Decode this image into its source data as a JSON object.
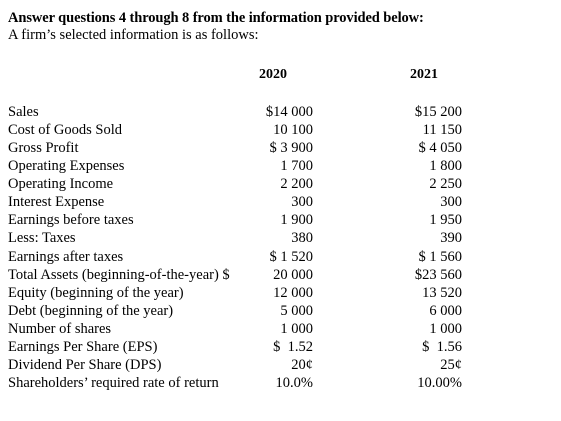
{
  "heading": "Answer questions 4 through 8 from the information provided below:",
  "subheading": "A firm’s selected information is as follows:",
  "columns": [
    "2020",
    "2021"
  ],
  "rows": [
    {
      "label": "Sales",
      "v2020": "$14 000",
      "v2021": "$15 200"
    },
    {
      "label": "Cost of Goods Sold",
      "v2020": "10 100",
      "v2021": "11 150"
    },
    {
      "label": "Gross Profit",
      "v2020": "$ 3 900",
      "v2021": "$ 4 050"
    },
    {
      "label": "Operating Expenses",
      "v2020": "1 700",
      "v2021": "1 800"
    },
    {
      "label": "Operating Income",
      "v2020": "2 200",
      "v2021": "2 250"
    },
    {
      "label": "Interest Expense",
      "v2020": "300",
      "v2021": "300"
    },
    {
      "label": "Earnings before taxes",
      "v2020": "1 900",
      "v2021": "1 950"
    },
    {
      "label": "Less: Taxes",
      "v2020": "380",
      "v2021": "390"
    },
    {
      "label": "Earnings after taxes",
      "v2020": "$ 1 520",
      "v2021": "$ 1 560"
    },
    {
      "label": "Total Assets (beginning-of-the-year) $",
      "v2020": "20 000",
      "v2021": "$23 560"
    },
    {
      "label": "Equity (beginning of the year)",
      "v2020": "12 000",
      "v2021": "13 520"
    },
    {
      "label": "Debt (beginning of the year)",
      "v2020": "5 000",
      "v2021": "6 000"
    },
    {
      "label": "Number of shares",
      "v2020": "1 000",
      "v2021": "1 000"
    },
    {
      "label": "Earnings Per Share (EPS)",
      "v2020": "$  1.52",
      "v2021": "$  1.56"
    },
    {
      "label": "Dividend Per Share (DPS)",
      "v2020": "20¢",
      "v2021": "25¢"
    },
    {
      "label": "Shareholders’ required rate of return",
      "v2020": "10.0%",
      "v2021": "10.00%"
    }
  ]
}
